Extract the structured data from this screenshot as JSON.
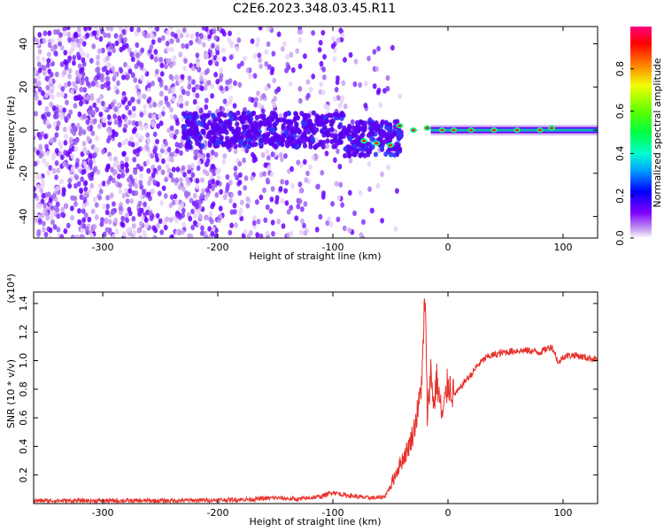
{
  "title": "C2E6.2023.348.03.45.R11",
  "chart_data": [
    {
      "type": "heatmap",
      "title": "C2E6.2023.348.03.45.R11",
      "xlabel": "Height of straight line (km)",
      "ylabel": "Frequency (Hz)",
      "xlim": [
        -360,
        130
      ],
      "ylim": [
        -50,
        48
      ],
      "x_ticks": [
        "-300",
        "-200",
        "-100",
        "0",
        "100"
      ],
      "y_ticks": [
        "40",
        "20",
        "0",
        "-20",
        "-40"
      ],
      "colorbar": {
        "label": "Normalized spectral amplitude",
        "range": [
          0,
          1
        ],
        "ticks": [
          "0.0",
          "0.2",
          "0.4",
          "0.6",
          "0.8"
        ],
        "colors": [
          "#ffffff",
          "#c8a0f0",
          "#7a00ff",
          "#0000ff",
          "#00c8ff",
          "#00ff80",
          "#00ff00",
          "#c8ff00",
          "#ffff00",
          "#ff8000",
          "#ff0000",
          "#ff0080"
        ]
      },
      "features": {
        "noise_region_x": [
          -360,
          -80
        ],
        "signal_line_frequency": 0,
        "signal_start_x": -15,
        "signal_end_x": 130,
        "strong_points_x": [
          -73,
          -62,
          -50,
          -42,
          -30,
          -18,
          -5,
          5,
          20,
          40,
          60,
          80,
          90
        ],
        "strong_points_y": [
          -5,
          -6,
          -7,
          2,
          0,
          1,
          0,
          0,
          0,
          0,
          0,
          0,
          1
        ]
      },
      "grid": false
    },
    {
      "type": "line",
      "xlabel": "Height of straight line (km)",
      "ylabel": "SNR (10 * v/v)",
      "y_multiplier": "(x10⁴)",
      "xlim": [
        -360,
        130
      ],
      "ylim": [
        0,
        1.48
      ],
      "x_ticks": [
        "-300",
        "-200",
        "-100",
        "0",
        "100"
      ],
      "y_ticks": [
        "0.2",
        "0.4",
        "0.6",
        "0.8",
        "1.0",
        "1.2",
        "1.4"
      ],
      "series": [
        {
          "color": "#e8302a",
          "x": [
            -360,
            -300,
            -250,
            -200,
            -170,
            -150,
            -130,
            -110,
            -100,
            -90,
            -80,
            -70,
            -60,
            -55,
            -50,
            -45,
            -40,
            -35,
            -30,
            -25,
            -22,
            -20,
            -18,
            -15,
            -12,
            -10,
            -5,
            0,
            5,
            10,
            15,
            20,
            25,
            30,
            35,
            40,
            50,
            60,
            70,
            80,
            85,
            90,
            93,
            96,
            100,
            110,
            120,
            130
          ],
          "y": [
            0.02,
            0.02,
            0.02,
            0.025,
            0.03,
            0.04,
            0.03,
            0.05,
            0.08,
            0.06,
            0.05,
            0.04,
            0.04,
            0.05,
            0.12,
            0.22,
            0.3,
            0.38,
            0.5,
            0.7,
            0.95,
            1.48,
            0.62,
            0.92,
            0.68,
            0.88,
            0.6,
            0.85,
            0.76,
            0.8,
            0.86,
            0.9,
            0.96,
            1.0,
            1.03,
            1.04,
            1.06,
            1.07,
            1.07,
            1.06,
            1.08,
            1.1,
            1.05,
            0.98,
            1.03,
            1.04,
            1.02,
            1.01
          ]
        }
      ],
      "grid": false
    }
  ]
}
